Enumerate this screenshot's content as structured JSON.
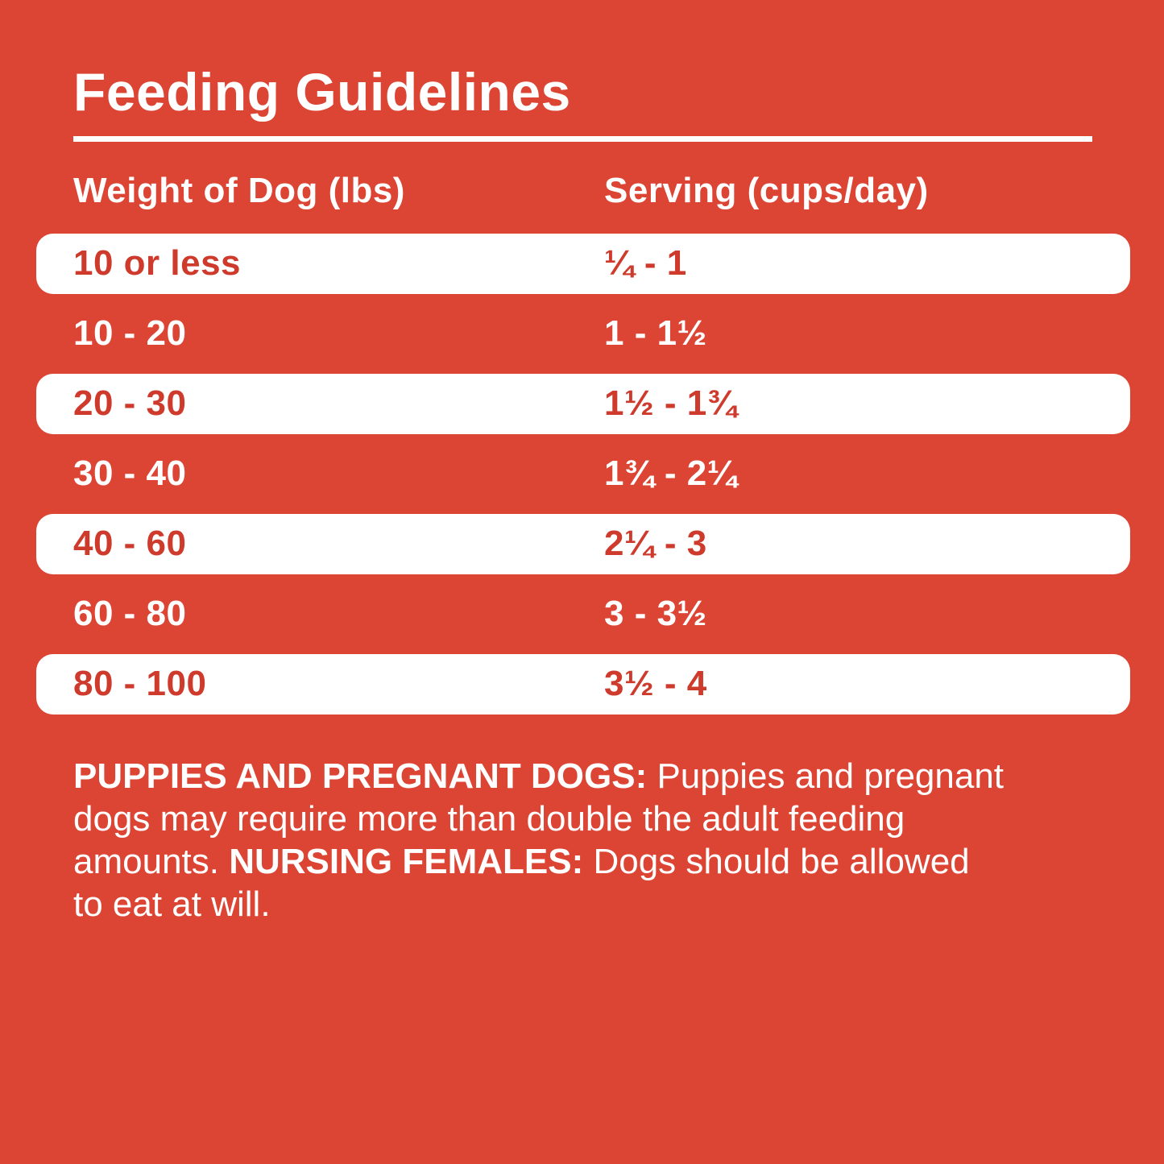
{
  "colors": {
    "background_red": "#DC4434",
    "pill_white": "#FFFFFF",
    "pill_text_red": "#CE3A2B",
    "text_white": "#FFFFFF"
  },
  "title": "Feeding Guidelines",
  "table": {
    "col_weight": "Weight of Dog (lbs)",
    "col_serving": "Serving (cups/day)",
    "rows": [
      {
        "weight": "10 or less",
        "serving": "¼ - 1",
        "highlight": true
      },
      {
        "weight": "10 - 20",
        "serving": "1 - 1½",
        "highlight": false
      },
      {
        "weight": "20 - 30",
        "serving": "1½ - 1¾",
        "highlight": true
      },
      {
        "weight": "30 - 40",
        "serving": "1¾ - 2¼",
        "highlight": false
      },
      {
        "weight": "40 - 60",
        "serving": "2¼ - 3",
        "highlight": true
      },
      {
        "weight": "60 - 80",
        "serving": "3 - 3½",
        "highlight": false
      },
      {
        "weight": "80 - 100",
        "serving": "3½ - 4",
        "highlight": true
      }
    ]
  },
  "footer": {
    "lines": [
      [
        {
          "bold": true,
          "text": "PUPPIES AND PREGNANT DOGS:"
        },
        {
          "bold": false,
          "text": " Puppies and pregnant"
        }
      ],
      [
        {
          "bold": false,
          "text": "dogs may require more than double the adult feeding"
        }
      ],
      [
        {
          "bold": false,
          "text": "amounts. "
        },
        {
          "bold": true,
          "text": "NURSING FEMALES:"
        },
        {
          "bold": false,
          "text": " Dogs should be allowed"
        }
      ],
      [
        {
          "bold": false,
          "text": "to eat at will."
        }
      ]
    ]
  }
}
